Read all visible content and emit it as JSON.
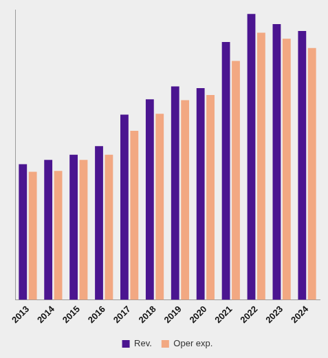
{
  "chart_data": {
    "type": "bar",
    "categories": [
      "2013",
      "2014",
      "2015",
      "2016",
      "2017",
      "2018",
      "2019",
      "2020",
      "2021",
      "2022",
      "2023",
      "2024"
    ],
    "series": [
      {
        "name": "Rev.",
        "color": "#4b1590",
        "values": [
          159,
          164,
          170,
          180,
          217,
          235,
          250,
          248,
          302,
          335,
          323,
          315
        ]
      },
      {
        "name": "Oper exp.",
        "color": "#f2a882",
        "values": [
          150,
          151,
          164,
          170,
          198,
          218,
          234,
          240,
          280,
          313,
          306,
          295
        ]
      }
    ],
    "ylim": [
      0,
      340
    ],
    "grid": false,
    "legend": "bottom",
    "tick_labels": "x"
  }
}
